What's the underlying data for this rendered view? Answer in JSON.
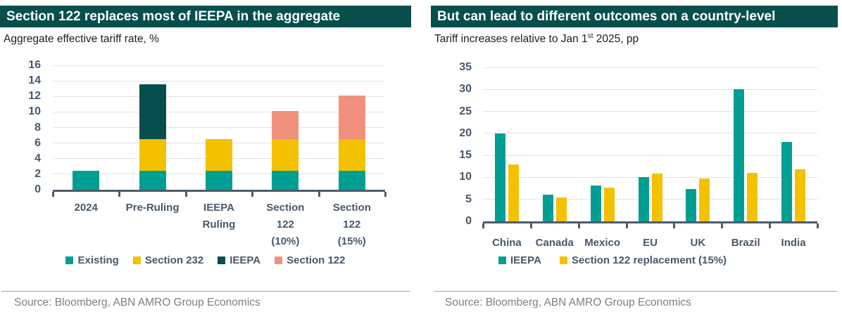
{
  "left": {
    "title": "Section 122 replaces most of IEEPA in the aggregate",
    "subtitle": "Aggregate effective tariff rate, %",
    "source": "Source: Bloomberg, ABN AMRO Group Economics"
  },
  "right": {
    "title": "But can lead to different outcomes on a country-level",
    "subtitle_pre": "Tariff increases relative to Jan 1",
    "subtitle_sup": "st",
    "subtitle_post": " 2025, pp",
    "source": "Source: Bloomberg, ABN AMRO Group Economics"
  },
  "colors": {
    "header_bg": "#064f4d",
    "teal": "#009e93",
    "yellow": "#f3c100",
    "dark_teal": "#064f4d",
    "salmon": "#f0917e",
    "axis_text": "#47586b",
    "axis_line": "#4d5c6c",
    "grid": "#e3e3e3",
    "source_text": "#7f7f7f"
  },
  "chart_data": [
    {
      "type": "bar",
      "stacked": true,
      "title": "Section 122 replaces most of IEEPA in the aggregate",
      "ylabel": "Aggregate effective tariff rate, %",
      "categories": [
        "2024",
        "Pre-Ruling",
        "IEEPA\nRuling",
        "Section\n122\n(10%)",
        "Section\n122\n(15%)"
      ],
      "series": [
        {
          "name": "Existing",
          "color": "#009e93",
          "values": [
            2.4,
            2.4,
            2.4,
            2.4,
            2.4
          ]
        },
        {
          "name": "Section 232",
          "color": "#f3c100",
          "values": [
            0,
            4.1,
            4.1,
            4.1,
            4.1
          ]
        },
        {
          "name": "IEEPA",
          "color": "#064f4d",
          "values": [
            0,
            7.1,
            0,
            0,
            0
          ]
        },
        {
          "name": "Section 122",
          "color": "#f0917e",
          "values": [
            0,
            0,
            0,
            3.6,
            5.6
          ]
        }
      ],
      "totals": [
        2.4,
        13.6,
        6.5,
        10.1,
        12.1
      ],
      "ylim": [
        0,
        16
      ],
      "ytick_step": 2,
      "grid": true,
      "legend_position": "bottom"
    },
    {
      "type": "bar",
      "stacked": false,
      "title": "But can lead to different outcomes on a country-level",
      "ylabel": "Tariff increases relative to Jan 1st 2025, pp",
      "categories": [
        "China",
        "Canada",
        "Mexico",
        "EU",
        "UK",
        "Brazil",
        "India"
      ],
      "series": [
        {
          "name": "IEEPA",
          "color": "#009e93",
          "values": [
            20,
            6,
            8.2,
            10,
            7.3,
            30,
            18
          ]
        },
        {
          "name": "Section 122 replacement (15%)",
          "color": "#f3c100",
          "values": [
            13,
            5.4,
            7.6,
            10.8,
            9.8,
            11,
            11.8
          ]
        }
      ],
      "ylim": [
        0,
        35
      ],
      "ytick_step": 5,
      "grid": true,
      "legend_position": "bottom"
    }
  ]
}
